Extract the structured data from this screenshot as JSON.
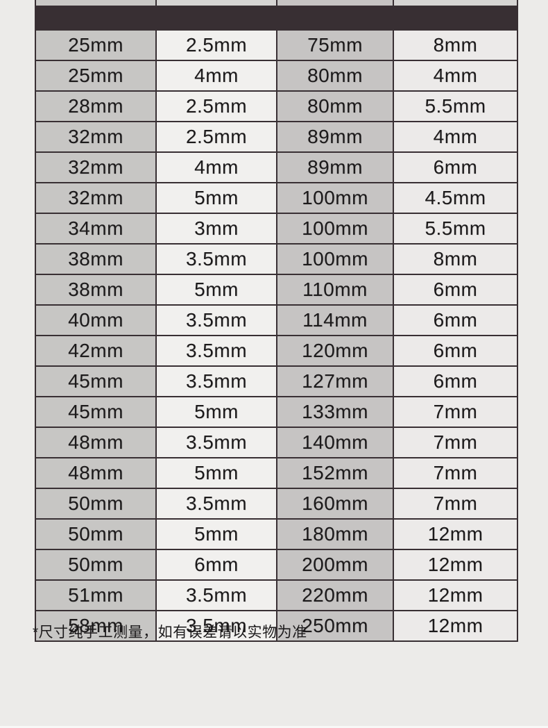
{
  "table": {
    "rows": [
      [
        "25mm",
        "2.5mm",
        "75mm",
        "8mm"
      ],
      [
        "25mm",
        "4mm",
        "80mm",
        "4mm"
      ],
      [
        "28mm",
        "2.5mm",
        "80mm",
        "5.5mm"
      ],
      [
        "32mm",
        "2.5mm",
        "89mm",
        "4mm"
      ],
      [
        "32mm",
        "4mm",
        "89mm",
        "6mm"
      ],
      [
        "32mm",
        "5mm",
        "100mm",
        "4.5mm"
      ],
      [
        "34mm",
        "3mm",
        "100mm",
        "5.5mm"
      ],
      [
        "38mm",
        "3.5mm",
        "100mm",
        "8mm"
      ],
      [
        "38mm",
        "5mm",
        "110mm",
        "6mm"
      ],
      [
        "40mm",
        "3.5mm",
        "114mm",
        "6mm"
      ],
      [
        "42mm",
        "3.5mm",
        "120mm",
        "6mm"
      ],
      [
        "45mm",
        "3.5mm",
        "127mm",
        "6mm"
      ],
      [
        "45mm",
        "5mm",
        "133mm",
        "7mm"
      ],
      [
        "48mm",
        "3.5mm",
        "140mm",
        "7mm"
      ],
      [
        "48mm",
        "5mm",
        "152mm",
        "7mm"
      ],
      [
        "50mm",
        "3.5mm",
        "160mm",
        "7mm"
      ],
      [
        "50mm",
        "5mm",
        "180mm",
        "12mm"
      ],
      [
        "50mm",
        "6mm",
        "200mm",
        "12mm"
      ],
      [
        "51mm",
        "3.5mm",
        "220mm",
        "12mm"
      ],
      [
        "58mm",
        "3.5mm",
        "250mm",
        "12mm"
      ]
    ],
    "column_backgrounds": [
      "#c7c6c4",
      "#f1f0ee",
      "#c6c4c3",
      "#eceae9"
    ],
    "partial_top_row_backgrounds": [
      "#c9c8c6",
      "#d6d5d3",
      "#c6c4c3",
      "#d6d5d3"
    ],
    "colors": {
      "border": "#382f33",
      "text": "#1c1a1b",
      "page_background": "#ecebe9"
    }
  },
  "footnote": "*尺寸纯手工测量，如有误差请以实物为准"
}
